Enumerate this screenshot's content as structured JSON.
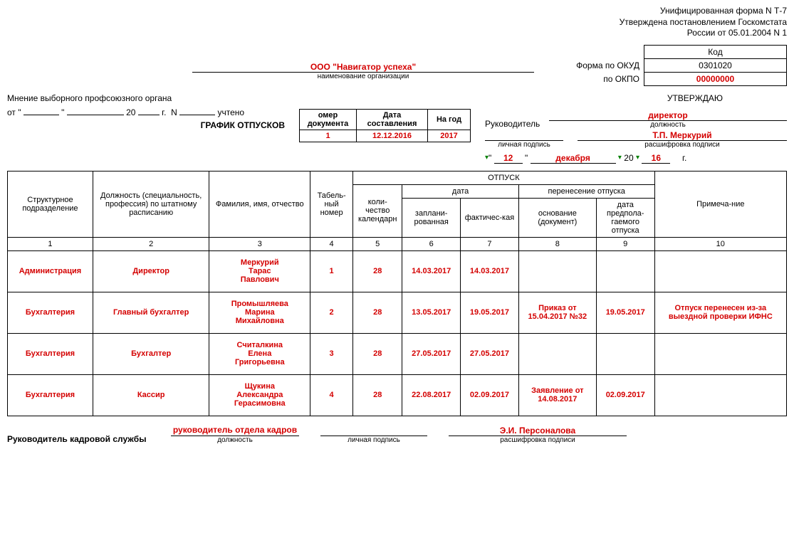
{
  "header": {
    "line1": "Унифицированная форма N Т-7",
    "line2": "Утверждена постановлением Госкомстата",
    "line3": "России от 05.01.2004 N 1"
  },
  "code_box": {
    "code_header": "Код",
    "okud_label": "Форма по ОКУД",
    "okud_value": "0301020",
    "okpo_label": "по ОКПО",
    "okpo_value": "00000000"
  },
  "org": {
    "name": "ООО \"Навигатор успеха\"",
    "caption": "наименование организации"
  },
  "approve": {
    "title": "УТВЕРЖДАЮ",
    "ruk_label": "Руководитель",
    "position_value": "директор",
    "position_caption": "должность",
    "sig_caption": "личная подпись",
    "name_value": "Т.П. Меркурий",
    "name_caption": "расшифровка подписи",
    "day": "12",
    "month": "декабря",
    "year_prefix": "20",
    "year": "16",
    "year_suffix": "г."
  },
  "union": {
    "title": "Мнение выборного профсоюзного органа",
    "from": "от",
    "y20": "20",
    "g": "г.",
    "n": "N",
    "uchteno": "учтено"
  },
  "schedule_title": "ГРАФИК ОТПУСКОВ",
  "doc_info": {
    "h1": "омер документа",
    "h2": "Дата составления",
    "h3": "На год",
    "num": "1",
    "date": "12.12.2016",
    "year": "2017"
  },
  "table": {
    "h_unit": "Структурное подразделение",
    "h_position": "Должность (специальность, профессия) по штатному расписанию",
    "h_fio": "Фамилия, имя, отчество",
    "h_tabno": "Табель-ный номер",
    "h_otpusk": "ОТПУСК",
    "h_qty": "коли-чество календарн",
    "h_date": "дата",
    "h_plan": "заплани-рованная",
    "h_fact": "фактичес-кая",
    "h_transfer": "перенесение отпуска",
    "h_basis": "основание (документ)",
    "h_newdate": "дата предпола-гаемого отпуска",
    "h_note": "Примеча-ние",
    "cols": [
      "1",
      "2",
      "3",
      "4",
      "5",
      "6",
      "7",
      "8",
      "9",
      "10"
    ],
    "rows": [
      {
        "unit": "Администрация",
        "pos": "Директор",
        "fio": "Меркурий Тарас Павлович",
        "tab": "1",
        "qty": "28",
        "plan": "14.03.2017",
        "fact": "14.03.2017",
        "basis": "",
        "newdate": "",
        "note": ""
      },
      {
        "unit": "Бухгалтерия",
        "pos": "Главный бухгалтер",
        "fio": "Промышляева Марина Михайловна",
        "tab": "2",
        "qty": "28",
        "plan": "13.05.2017",
        "fact": "19.05.2017",
        "basis": "Приказ от 15.04.2017 №32",
        "newdate": "19.05.2017",
        "note": "Отпуск перенесен из-за выездной проверки ИФНС"
      },
      {
        "unit": "Бухгалтерия",
        "pos": "Бухгалтер",
        "fio": "Считалкина Елена Григорьевна",
        "tab": "3",
        "qty": "28",
        "plan": "27.05.2017",
        "fact": "27.05.2017",
        "basis": "",
        "newdate": "",
        "note": ""
      },
      {
        "unit": "Бухгалтерия",
        "pos": "Кассир",
        "fio": "Щукина Александра Герасимовна",
        "tab": "4",
        "qty": "28",
        "plan": "22.08.2017",
        "fact": "02.09.2017",
        "basis": "Заявление от 14.08.2017",
        "newdate": "02.09.2017",
        "note": ""
      }
    ]
  },
  "footer": {
    "hr_head_label": "Руководитель кадровой службы",
    "hr_position": "руководитель отдела кадров",
    "position_caption": "должность",
    "sig_caption": "личная подпись",
    "hr_name": "Э.И. Персоналова",
    "name_caption": "расшифровка подписи"
  }
}
